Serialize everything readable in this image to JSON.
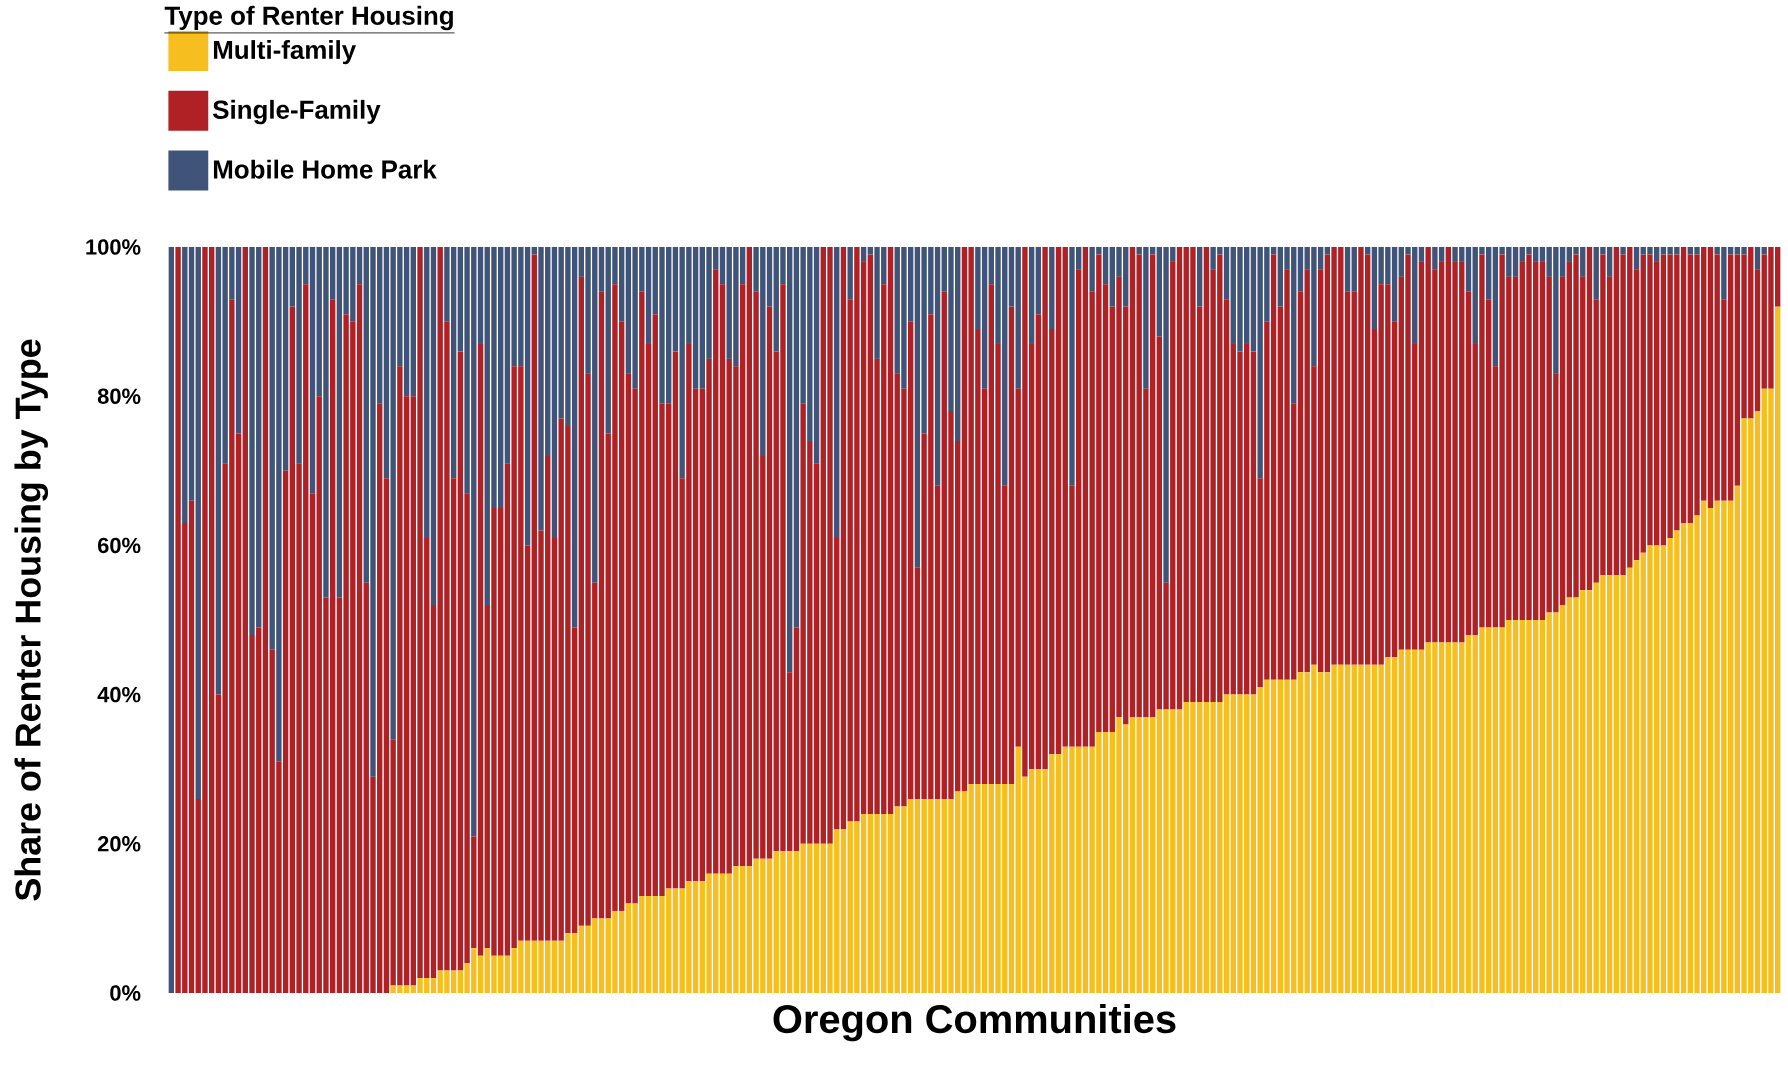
{
  "chart_data": {
    "type": "bar",
    "stacked": true,
    "xlabel": "Oregon Communities",
    "ylabel": "Share of Renter Housing by Type",
    "legend_title": "Type of Renter Housing",
    "legend": "top left",
    "tick_labels": "y",
    "ylim": [
      0,
      100
    ],
    "yticks": [
      {
        "value": 0,
        "label": "0%"
      },
      {
        "value": 20,
        "label": "20%"
      },
      {
        "value": 40,
        "label": "40%"
      },
      {
        "value": 60,
        "label": "60%"
      },
      {
        "value": 80,
        "label": "80%"
      },
      {
        "value": 100,
        "label": "100%"
      }
    ],
    "categories": [
      null,
      null,
      null,
      null,
      null,
      null,
      null,
      null,
      null,
      null,
      null,
      null,
      null,
      null,
      null,
      null,
      null,
      null,
      null,
      null,
      null,
      null,
      null,
      null,
      null,
      null,
      null,
      null,
      null,
      null,
      null,
      null,
      null,
      null,
      null,
      null,
      null,
      null,
      null,
      null,
      null,
      null,
      null,
      null,
      null,
      null,
      null,
      null,
      null,
      null,
      null,
      null,
      null,
      null,
      null,
      null,
      null,
      null,
      null,
      null,
      null,
      null,
      null,
      null,
      null,
      null,
      null,
      null,
      null,
      null,
      null,
      null,
      null,
      null,
      null,
      null,
      null,
      null,
      null,
      null,
      null,
      null,
      null,
      null,
      null,
      null,
      null,
      null,
      null,
      null,
      null,
      null,
      null,
      null,
      null,
      null,
      null,
      null,
      null,
      null,
      null,
      null,
      null,
      null,
      null,
      null,
      null,
      null,
      null,
      null,
      null,
      null,
      null,
      null,
      null,
      null,
      null,
      null,
      null,
      null,
      null,
      null,
      null,
      null,
      null,
      null,
      null,
      null,
      null,
      null,
      null,
      null,
      null,
      null,
      null,
      null,
      null,
      null,
      null,
      null,
      null,
      null,
      null,
      null,
      null,
      null,
      null,
      null,
      null,
      null,
      null,
      null,
      null,
      null,
      null,
      null,
      null,
      null,
      null,
      null,
      null,
      null,
      null,
      null,
      null,
      null,
      null,
      null,
      null,
      null,
      null,
      null,
      null,
      null,
      null,
      null,
      null,
      null,
      null,
      null,
      null,
      null,
      null,
      null,
      null,
      null,
      null,
      null,
      null,
      null,
      null,
      null,
      null,
      null,
      null,
      null,
      null,
      null,
      null,
      null,
      null,
      null,
      null,
      null,
      null,
      null,
      null,
      null,
      null,
      null,
      null,
      null,
      null,
      null,
      null,
      null,
      null,
      null,
      null,
      null,
      null,
      null,
      null,
      null,
      null,
      null,
      null,
      null,
      null,
      null,
      null,
      null,
      null,
      null,
      null,
      null,
      null,
      null,
      null,
      null
    ],
    "series": [
      {
        "name": "Multi-family",
        "color": "#f6be1e",
        "values": [
          0,
          0,
          0,
          0,
          0,
          0,
          0,
          0,
          0,
          0,
          0,
          0,
          0,
          0,
          0,
          0,
          0,
          0,
          0,
          0,
          0,
          0,
          0,
          0,
          0,
          0,
          0,
          0,
          0,
          0,
          0,
          0,
          0,
          1,
          1,
          1,
          1,
          2,
          2,
          2,
          3,
          3,
          3,
          3,
          4,
          6,
          5,
          6,
          5,
          5,
          5,
          6,
          7,
          7,
          7,
          7,
          7,
          7,
          7,
          8,
          8,
          9,
          9,
          10,
          10,
          10,
          11,
          11,
          12,
          12,
          13,
          13,
          13,
          13,
          14,
          14,
          14,
          15,
          15,
          15,
          16,
          16,
          16,
          16,
          17,
          17,
          17,
          18,
          18,
          18,
          19,
          19,
          19,
          19,
          20,
          20,
          20,
          20,
          20,
          22,
          22,
          23,
          23,
          24,
          24,
          24,
          24,
          24,
          25,
          25,
          26,
          26,
          26,
          26,
          26,
          26,
          26,
          27,
          27,
          28,
          28,
          28,
          28,
          28,
          28,
          28,
          33,
          29,
          30,
          30,
          30,
          32,
          32,
          33,
          33,
          33,
          33,
          33,
          35,
          35,
          35,
          37,
          36,
          37,
          37,
          37,
          37,
          38,
          38,
          38,
          38,
          39,
          39,
          39,
          39,
          39,
          39,
          40,
          40,
          40,
          40,
          40,
          41,
          42,
          42,
          42,
          42,
          42,
          43,
          43,
          44,
          43,
          43,
          44,
          44,
          44,
          44,
          44,
          44,
          44,
          44,
          45,
          45,
          46,
          46,
          46,
          46,
          47,
          47,
          47,
          47,
          47,
          47,
          48,
          48,
          49,
          49,
          49,
          49,
          50,
          50,
          50,
          50,
          50,
          50,
          51,
          51,
          52,
          53,
          53,
          54,
          54,
          55,
          56,
          56,
          56,
          56,
          57,
          58,
          59,
          60,
          60,
          60,
          61,
          62,
          63,
          63,
          64,
          66,
          65,
          66,
          66,
          66,
          68,
          77,
          77,
          78,
          81,
          81,
          92
        ]
      },
      {
        "name": "Single-Family",
        "color": "#b02126",
        "values": [
          0,
          100,
          63,
          66,
          26,
          100,
          100,
          40,
          71,
          93,
          75,
          100,
          48,
          49,
          100,
          46,
          31,
          70,
          92,
          71,
          95,
          67,
          80,
          53,
          93,
          53,
          91,
          90,
          95,
          55,
          29,
          79,
          69,
          33,
          83,
          79,
          79,
          98,
          59,
          50,
          97,
          87,
          66,
          83,
          63,
          15,
          82,
          46,
          60,
          60,
          66,
          78,
          77,
          53,
          92,
          55,
          65,
          54,
          70,
          68,
          41,
          87,
          74,
          45,
          84,
          65,
          84,
          79,
          71,
          69,
          81,
          74,
          78,
          66,
          65,
          72,
          55,
          72,
          66,
          66,
          69,
          81,
          79,
          69,
          67,
          78,
          83,
          76,
          54,
          74,
          67,
          76,
          24,
          30,
          59,
          54,
          51,
          80,
          80,
          39,
          78,
          70,
          77,
          74,
          75,
          61,
          71,
          76,
          58,
          56,
          64,
          31,
          49,
          65,
          42,
          68,
          52,
          47,
          73,
          72,
          61,
          53,
          67,
          59,
          40,
          64,
          48,
          71,
          57,
          61,
          70,
          57,
          68,
          67,
          35,
          64,
          67,
          61,
          64,
          60,
          57,
          59,
          56,
          63,
          62,
          44,
          62,
          50,
          17,
          60,
          62,
          61,
          61,
          53,
          61,
          58,
          60,
          53,
          47,
          46,
          47,
          46,
          28,
          48,
          57,
          50,
          55,
          37,
          51,
          54,
          40,
          54,
          56,
          56,
          56,
          50,
          50,
          56,
          55,
          45,
          51,
          50,
          45,
          50,
          53,
          41,
          52,
          53,
          50,
          51,
          53,
          51,
          51,
          46,
          39,
          50,
          44,
          35,
          50,
          46,
          46,
          48,
          49,
          48,
          48,
          45,
          32,
          44,
          45,
          46,
          42,
          46,
          38,
          43,
          40,
          44,
          43,
          43,
          39,
          40,
          39,
          38,
          39,
          38,
          37,
          37,
          36,
          35,
          34,
          35,
          33,
          27,
          33,
          31,
          22,
          23,
          19,
          18,
          19,
          8
        ]
      },
      {
        "name": "Mobile Home Park",
        "color": "#3f5478",
        "values": [
          100,
          0,
          37,
          34,
          74,
          0,
          0,
          60,
          29,
          7,
          25,
          0,
          52,
          51,
          0,
          54,
          69,
          30,
          8,
          29,
          5,
          33,
          20,
          47,
          7,
          47,
          9,
          10,
          5,
          45,
          71,
          21,
          31,
          66,
          16,
          20,
          20,
          0,
          39,
          48,
          0,
          10,
          31,
          14,
          33,
          79,
          13,
          48,
          35,
          35,
          29,
          16,
          16,
          40,
          1,
          38,
          28,
          39,
          23,
          24,
          51,
          4,
          17,
          45,
          6,
          25,
          5,
          10,
          17,
          19,
          6,
          13,
          9,
          21,
          21,
          14,
          31,
          13,
          19,
          19,
          15,
          3,
          5,
          15,
          16,
          5,
          0,
          6,
          28,
          8,
          14,
          5,
          57,
          51,
          21,
          26,
          29,
          0,
          0,
          39,
          0,
          7,
          0,
          2,
          1,
          15,
          5,
          0,
          17,
          19,
          10,
          43,
          25,
          9,
          32,
          6,
          22,
          26,
          0,
          0,
          11,
          19,
          5,
          13,
          32,
          8,
          19,
          0,
          13,
          9,
          0,
          11,
          0,
          0,
          32,
          3,
          0,
          6,
          1,
          5,
          8,
          4,
          8,
          0,
          1,
          19,
          1,
          12,
          45,
          2,
          0,
          0,
          0,
          8,
          0,
          3,
          1,
          7,
          13,
          14,
          13,
          14,
          31,
          10,
          1,
          8,
          3,
          21,
          6,
          3,
          16,
          3,
          1,
          0,
          0,
          6,
          6,
          0,
          1,
          11,
          5,
          5,
          10,
          4,
          1,
          13,
          2,
          0,
          3,
          2,
          0,
          2,
          2,
          6,
          13,
          1,
          7,
          16,
          1,
          4,
          4,
          2,
          1,
          2,
          2,
          4,
          17,
          4,
          2,
          1,
          4,
          0,
          7,
          1,
          4,
          0,
          1,
          0,
          3,
          1,
          1,
          2,
          1,
          1,
          1,
          0,
          1,
          1,
          0,
          0,
          1,
          7,
          1,
          1,
          1,
          0,
          3,
          1,
          0,
          0
        ]
      }
    ]
  }
}
